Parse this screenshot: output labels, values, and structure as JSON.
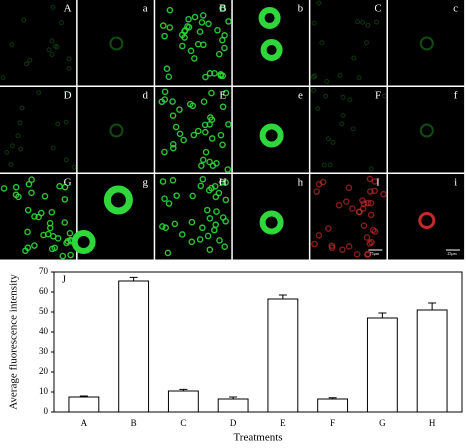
{
  "panel_labels": [
    "A",
    "a",
    "B",
    "b",
    "C",
    "c",
    "D",
    "d",
    "E",
    "e",
    "F",
    "f",
    "G",
    "g",
    "H",
    "h",
    "I",
    "i"
  ],
  "scale_bars": [
    "75μm",
    "25μm"
  ],
  "chart_data": {
    "type": "bar",
    "panel_label": "J",
    "x_label": "Treatments",
    "y_label": "Average fluorescence intensity",
    "categories": [
      "A",
      "B",
      "C",
      "D",
      "E",
      "F",
      "G",
      "H"
    ],
    "values": [
      7.5,
      65.5,
      10.5,
      6.5,
      56.5,
      6.5,
      47,
      51
    ],
    "errors": [
      0.5,
      1.8,
      0.8,
      1,
      2,
      0.6,
      2.5,
      3.5
    ],
    "color": "#ffffff",
    "ylim": [
      0,
      70
    ],
    "yticks": [
      0,
      10,
      20,
      30,
      40,
      50,
      60,
      70
    ]
  }
}
